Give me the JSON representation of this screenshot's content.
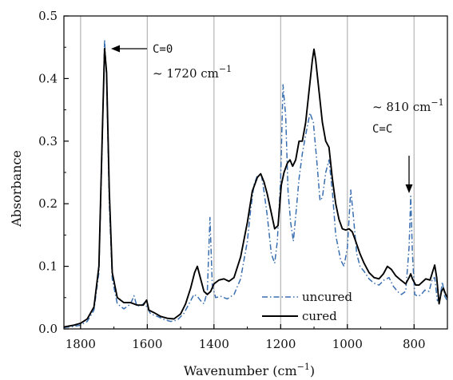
{
  "chart_data": {
    "type": "line",
    "title": "",
    "xlabel": "Wavenumber (cm",
    "xlabel_sup": "−1",
    "xlabel_close": ")",
    "ylabel": "Absorbance",
    "x_reversed": true,
    "xlim": [
      1850,
      700
    ],
    "ylim": [
      0,
      0.5
    ],
    "grid": "vertical",
    "x_ticks": [
      1800,
      1600,
      1400,
      1200,
      1000,
      800
    ],
    "y_ticks": [
      0.0,
      0.1,
      0.2,
      0.3,
      0.4,
      0.5
    ],
    "x_tick_labels": [
      "1800",
      "1600",
      "1400",
      "1200",
      "1000",
      "800"
    ],
    "y_tick_labels": [
      "0.0",
      "0.1",
      "0.2",
      "0.3",
      "0.4",
      "0.5"
    ],
    "legend_position": "bottom-center",
    "annotations": {
      "co_label": "C=0",
      "co_pos": "~ 1720 cm",
      "co_pos_sup": "−1",
      "cc_pos": "~ 810 cm",
      "cc_pos_sup": "−1",
      "cc_label": "C=C"
    },
    "series": [
      {
        "name": "uncured",
        "color": "#3a6fb0",
        "dash": "dashdot",
        "points": [
          [
            1850,
            0.002
          ],
          [
            1820,
            0.004
          ],
          [
            1800,
            0.006
          ],
          [
            1780,
            0.012
          ],
          [
            1760,
            0.03
          ],
          [
            1745,
            0.09
          ],
          [
            1735,
            0.3
          ],
          [
            1728,
            0.462
          ],
          [
            1722,
            0.4
          ],
          [
            1714,
            0.2
          ],
          [
            1705,
            0.08
          ],
          [
            1690,
            0.04
          ],
          [
            1670,
            0.032
          ],
          [
            1650,
            0.04
          ],
          [
            1640,
            0.053
          ],
          [
            1632,
            0.038
          ],
          [
            1620,
            0.036
          ],
          [
            1608,
            0.042
          ],
          [
            1600,
            0.034
          ],
          [
            1590,
            0.024
          ],
          [
            1570,
            0.02
          ],
          [
            1550,
            0.015
          ],
          [
            1530,
            0.012
          ],
          [
            1510,
            0.014
          ],
          [
            1490,
            0.025
          ],
          [
            1475,
            0.04
          ],
          [
            1460,
            0.055
          ],
          [
            1450,
            0.052
          ],
          [
            1440,
            0.045
          ],
          [
            1430,
            0.04
          ],
          [
            1420,
            0.06
          ],
          [
            1412,
            0.178
          ],
          [
            1405,
            0.07
          ],
          [
            1395,
            0.05
          ],
          [
            1380,
            0.052
          ],
          [
            1360,
            0.048
          ],
          [
            1340,
            0.055
          ],
          [
            1320,
            0.08
          ],
          [
            1300,
            0.14
          ],
          [
            1290,
            0.19
          ],
          [
            1280,
            0.23
          ],
          [
            1270,
            0.245
          ],
          [
            1258,
            0.247
          ],
          [
            1250,
            0.22
          ],
          [
            1240,
            0.18
          ],
          [
            1228,
            0.12
          ],
          [
            1218,
            0.105
          ],
          [
            1210,
            0.14
          ],
          [
            1200,
            0.24
          ],
          [
            1193,
            0.39
          ],
          [
            1185,
            0.34
          ],
          [
            1178,
            0.22
          ],
          [
            1170,
            0.17
          ],
          [
            1162,
            0.14
          ],
          [
            1155,
            0.18
          ],
          [
            1145,
            0.24
          ],
          [
            1135,
            0.28
          ],
          [
            1125,
            0.31
          ],
          [
            1112,
            0.345
          ],
          [
            1102,
            0.33
          ],
          [
            1092,
            0.27
          ],
          [
            1082,
            0.205
          ],
          [
            1075,
            0.21
          ],
          [
            1065,
            0.25
          ],
          [
            1055,
            0.27
          ],
          [
            1045,
            0.22
          ],
          [
            1035,
            0.15
          ],
          [
            1020,
            0.11
          ],
          [
            1010,
            0.1
          ],
          [
            1000,
            0.13
          ],
          [
            990,
            0.222
          ],
          [
            982,
            0.18
          ],
          [
            972,
            0.12
          ],
          [
            962,
            0.1
          ],
          [
            950,
            0.092
          ],
          [
            935,
            0.08
          ],
          [
            920,
            0.073
          ],
          [
            905,
            0.07
          ],
          [
            890,
            0.078
          ],
          [
            875,
            0.082
          ],
          [
            862,
            0.068
          ],
          [
            850,
            0.06
          ],
          [
            838,
            0.055
          ],
          [
            825,
            0.06
          ],
          [
            815,
            0.13
          ],
          [
            810,
            0.212
          ],
          [
            805,
            0.12
          ],
          [
            798,
            0.055
          ],
          [
            788,
            0.052
          ],
          [
            778,
            0.055
          ],
          [
            768,
            0.062
          ],
          [
            755,
            0.06
          ],
          [
            745,
            0.08
          ],
          [
            738,
            0.082
          ],
          [
            730,
            0.045
          ],
          [
            722,
            0.05
          ],
          [
            715,
            0.075
          ],
          [
            708,
            0.052
          ],
          [
            700,
            0.045
          ]
        ]
      },
      {
        "name": "cured",
        "color": "#000000",
        "dash": "solid",
        "points": [
          [
            1850,
            0.003
          ],
          [
            1820,
            0.006
          ],
          [
            1800,
            0.009
          ],
          [
            1780,
            0.016
          ],
          [
            1760,
            0.035
          ],
          [
            1745,
            0.1
          ],
          [
            1735,
            0.31
          ],
          [
            1728,
            0.448
          ],
          [
            1722,
            0.41
          ],
          [
            1714,
            0.22
          ],
          [
            1705,
            0.09
          ],
          [
            1690,
            0.05
          ],
          [
            1670,
            0.042
          ],
          [
            1650,
            0.042
          ],
          [
            1630,
            0.038
          ],
          [
            1612,
            0.038
          ],
          [
            1602,
            0.046
          ],
          [
            1595,
            0.03
          ],
          [
            1580,
            0.026
          ],
          [
            1560,
            0.02
          ],
          [
            1540,
            0.017
          ],
          [
            1520,
            0.016
          ],
          [
            1500,
            0.024
          ],
          [
            1485,
            0.04
          ],
          [
            1470,
            0.065
          ],
          [
            1458,
            0.09
          ],
          [
            1450,
            0.1
          ],
          [
            1440,
            0.08
          ],
          [
            1430,
            0.06
          ],
          [
            1420,
            0.055
          ],
          [
            1410,
            0.06
          ],
          [
            1400,
            0.072
          ],
          [
            1385,
            0.078
          ],
          [
            1370,
            0.08
          ],
          [
            1355,
            0.076
          ],
          [
            1340,
            0.082
          ],
          [
            1320,
            0.115
          ],
          [
            1300,
            0.17
          ],
          [
            1285,
            0.22
          ],
          [
            1270,
            0.242
          ],
          [
            1260,
            0.248
          ],
          [
            1250,
            0.235
          ],
          [
            1240,
            0.215
          ],
          [
            1230,
            0.19
          ],
          [
            1218,
            0.16
          ],
          [
            1208,
            0.165
          ],
          [
            1198,
            0.23
          ],
          [
            1190,
            0.25
          ],
          [
            1180,
            0.265
          ],
          [
            1172,
            0.27
          ],
          [
            1164,
            0.26
          ],
          [
            1155,
            0.27
          ],
          [
            1145,
            0.3
          ],
          [
            1135,
            0.3
          ],
          [
            1125,
            0.33
          ],
          [
            1115,
            0.38
          ],
          [
            1105,
            0.43
          ],
          [
            1100,
            0.447
          ],
          [
            1095,
            0.43
          ],
          [
            1085,
            0.38
          ],
          [
            1075,
            0.33
          ],
          [
            1065,
            0.3
          ],
          [
            1055,
            0.29
          ],
          [
            1045,
            0.24
          ],
          [
            1035,
            0.2
          ],
          [
            1025,
            0.175
          ],
          [
            1015,
            0.16
          ],
          [
            1005,
            0.158
          ],
          [
            995,
            0.16
          ],
          [
            985,
            0.155
          ],
          [
            975,
            0.14
          ],
          [
            962,
            0.12
          ],
          [
            950,
            0.105
          ],
          [
            935,
            0.09
          ],
          [
            920,
            0.082
          ],
          [
            905,
            0.08
          ],
          [
            892,
            0.088
          ],
          [
            880,
            0.1
          ],
          [
            868,
            0.095
          ],
          [
            855,
            0.085
          ],
          [
            840,
            0.078
          ],
          [
            825,
            0.072
          ],
          [
            815,
            0.082
          ],
          [
            810,
            0.088
          ],
          [
            805,
            0.08
          ],
          [
            795,
            0.07
          ],
          [
            785,
            0.07
          ],
          [
            775,
            0.075
          ],
          [
            765,
            0.08
          ],
          [
            752,
            0.078
          ],
          [
            745,
            0.09
          ],
          [
            738,
            0.102
          ],
          [
            732,
            0.082
          ],
          [
            725,
            0.04
          ],
          [
            718,
            0.06
          ],
          [
            712,
            0.065
          ],
          [
            705,
            0.055
          ],
          [
            700,
            0.05
          ]
        ]
      }
    ]
  }
}
